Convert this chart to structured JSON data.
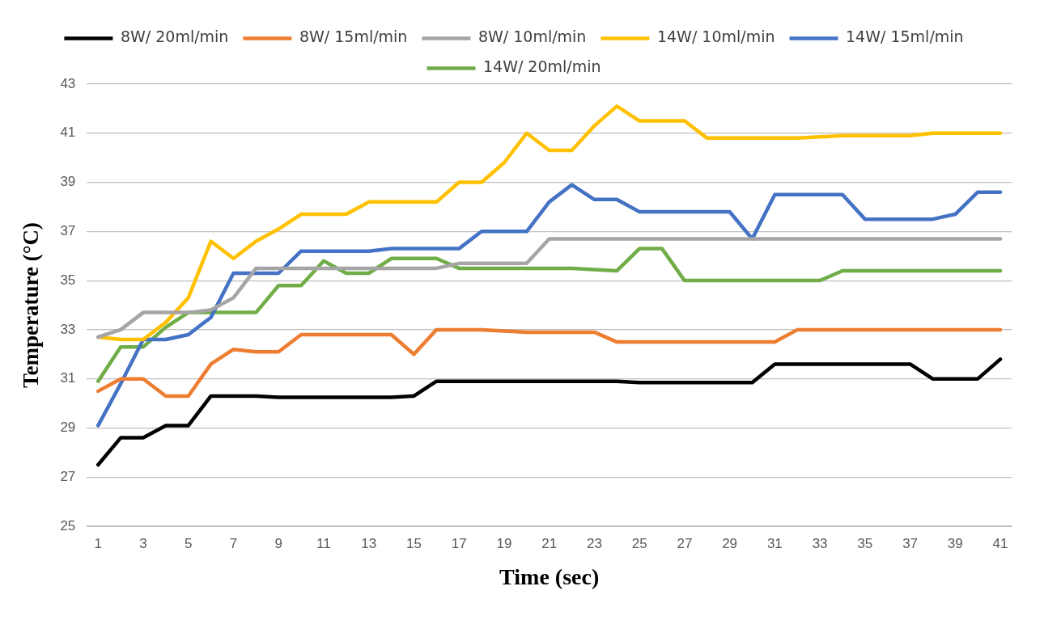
{
  "chart_data": {
    "type": "line",
    "xlabel": "Time (sec)",
    "ylabel": "Temperature (°C)",
    "x": [
      1,
      2,
      3,
      4,
      5,
      6,
      7,
      8,
      9,
      10,
      11,
      12,
      13,
      14,
      15,
      16,
      17,
      18,
      19,
      20,
      21,
      22,
      23,
      24,
      25,
      26,
      27,
      28,
      29,
      30,
      31,
      32,
      33,
      34,
      35,
      36,
      37,
      38,
      39,
      40,
      41
    ],
    "xlim": [
      0.5,
      41.5
    ],
    "xticks": [
      1,
      3,
      5,
      7,
      9,
      11,
      13,
      15,
      17,
      19,
      21,
      23,
      25,
      27,
      29,
      31,
      33,
      35,
      37,
      39,
      41
    ],
    "ylim": [
      25,
      43
    ],
    "yticks": [
      25,
      27,
      29,
      31,
      33,
      35,
      37,
      39,
      41,
      43
    ],
    "grid": "y",
    "legend": "top",
    "marker": "none",
    "line_style": "solid",
    "series": [
      {
        "name": "8W/ 20ml/min",
        "color": "#000000",
        "values": [
          27.5,
          28.6,
          28.6,
          29.1,
          29.1,
          30.3,
          30.3,
          30.3,
          30.25,
          30.25,
          30.25,
          30.25,
          30.25,
          30.25,
          30.3,
          30.9,
          30.9,
          30.9,
          30.9,
          30.9,
          30.9,
          30.9,
          30.9,
          30.9,
          30.85,
          30.85,
          30.85,
          30.85,
          30.85,
          30.85,
          31.6,
          31.6,
          31.6,
          31.6,
          31.6,
          31.6,
          31.6,
          31.0,
          31.0,
          31.0,
          31.8
        ]
      },
      {
        "name": "8W/ 15ml/min",
        "color": "#ed7d31",
        "values": [
          30.5,
          31.0,
          31.0,
          30.3,
          30.3,
          31.6,
          32.2,
          32.1,
          32.1,
          32.8,
          32.8,
          32.8,
          32.8,
          32.8,
          32.0,
          33.0,
          33.0,
          33.0,
          32.95,
          32.9,
          32.9,
          32.9,
          32.9,
          32.5,
          32.5,
          32.5,
          32.5,
          32.5,
          32.5,
          32.5,
          32.5,
          33.0,
          33.0,
          33.0,
          33.0,
          33.0,
          33.0,
          33.0,
          33.0,
          33.0,
          33.0
        ]
      },
      {
        "name": "8W/ 10ml/min",
        "color": "#a5a5a5",
        "values": [
          32.7,
          33.0,
          33.7,
          33.7,
          33.7,
          33.8,
          34.3,
          35.5,
          35.5,
          35.5,
          35.5,
          35.5,
          35.5,
          35.5,
          35.5,
          35.5,
          35.7,
          35.7,
          35.7,
          35.7,
          36.7,
          36.7,
          36.7,
          36.7,
          36.7,
          36.7,
          36.7,
          36.7,
          36.7,
          36.7,
          36.7,
          36.7,
          36.7,
          36.7,
          36.7,
          36.7,
          36.7,
          36.7,
          36.7,
          36.7,
          36.7
        ]
      },
      {
        "name": "14W/ 10ml/min",
        "color": "#ffc000",
        "values": [
          32.7,
          32.6,
          32.6,
          33.3,
          34.3,
          36.6,
          35.9,
          36.6,
          37.1,
          37.7,
          37.7,
          37.7,
          38.2,
          38.2,
          38.2,
          38.2,
          39.0,
          39.0,
          39.8,
          41.0,
          40.3,
          40.3,
          41.3,
          42.1,
          41.5,
          41.5,
          41.5,
          40.8,
          40.8,
          40.8,
          40.8,
          40.8,
          40.85,
          40.9,
          40.9,
          40.9,
          40.9,
          41.0,
          41.0,
          41.0,
          41.0
        ]
      },
      {
        "name": "14W/ 15ml/min",
        "color": "#4472c4",
        "values": [
          29.1,
          30.8,
          32.6,
          32.6,
          32.8,
          33.5,
          35.3,
          35.3,
          35.3,
          36.2,
          36.2,
          36.2,
          36.2,
          36.3,
          36.3,
          36.3,
          36.3,
          37.0,
          37.0,
          37.0,
          38.2,
          38.9,
          38.3,
          38.3,
          37.8,
          37.8,
          37.8,
          37.8,
          37.8,
          36.7,
          38.5,
          38.5,
          38.5,
          38.5,
          37.5,
          37.5,
          37.5,
          37.5,
          37.7,
          38.6,
          38.6
        ]
      },
      {
        "name": "14W/ 20ml/min",
        "color": "#70ad47",
        "values": [
          30.9,
          32.3,
          32.3,
          33.1,
          33.7,
          33.7,
          33.7,
          33.7,
          34.8,
          34.8,
          35.8,
          35.3,
          35.3,
          35.9,
          35.9,
          35.9,
          35.5,
          35.5,
          35.5,
          35.5,
          35.5,
          35.5,
          35.45,
          35.4,
          36.3,
          36.3,
          35.0,
          35.0,
          35.0,
          35.0,
          35.0,
          35.0,
          35.0,
          35.4,
          35.4,
          35.4,
          35.4,
          35.4,
          35.4,
          35.4,
          35.4
        ]
      }
    ]
  }
}
